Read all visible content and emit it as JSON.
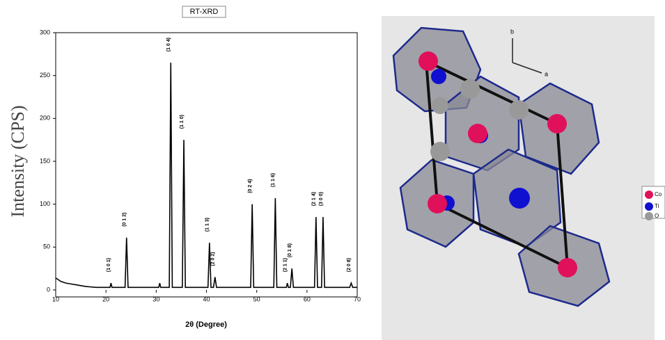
{
  "chart_data": {
    "type": "line",
    "title": "RT-XRD",
    "xlabel": "2θ (Degree)",
    "ylabel": "Intensity (CPS)",
    "x": [
      10,
      11,
      12,
      13,
      14,
      15,
      16,
      18,
      20,
      20.8,
      21,
      21.2,
      23.8,
      24.1,
      24.4,
      30.5,
      30.7,
      30.9,
      32.6,
      32.9,
      33.2,
      35.2,
      35.5,
      35.8,
      40.3,
      40.6,
      40.9,
      41.4,
      41.7,
      42,
      48.8,
      49.1,
      49.4,
      53.4,
      53.7,
      54,
      55.9,
      56.1,
      56.3,
      56.7,
      57,
      57.3,
      61.5,
      61.8,
      62.1,
      62.9,
      63.2,
      63.5,
      68.5,
      68.8,
      69.1,
      70
    ],
    "series": [
      {
        "color": "#000000",
        "values": [
          14,
          10,
          8,
          7,
          6,
          5,
          4,
          3,
          3,
          3,
          8,
          3,
          3,
          61,
          3,
          3,
          8,
          3,
          3,
          265,
          3,
          3,
          175,
          3,
          3,
          55,
          3,
          3,
          15,
          3,
          3,
          100,
          3,
          3,
          107,
          3,
          3,
          8,
          3,
          3,
          25,
          3,
          3,
          85,
          3,
          3,
          85,
          3,
          3,
          8,
          3,
          3
        ]
      }
    ],
    "annotations": [
      {
        "label": "(1 0 1)",
        "x": 21,
        "y": 8
      },
      {
        "label": "(0 1 2)",
        "x": 24.1,
        "y": 61
      },
      {
        "label": "(1 0 4)",
        "x": 32.9,
        "y": 265
      },
      {
        "label": "(1 1 0)",
        "x": 35.5,
        "y": 175
      },
      {
        "label": "(1 1 3)",
        "x": 40.6,
        "y": 55
      },
      {
        "label": "(2 0 2)",
        "x": 41.7,
        "y": 15
      },
      {
        "label": "(0 2 4)",
        "x": 49.1,
        "y": 100
      },
      {
        "label": "(1 1 6)",
        "x": 53.7,
        "y": 107
      },
      {
        "label": "(2 1 1)",
        "x": 56.1,
        "y": 8
      },
      {
        "label": "(0 1 8)",
        "x": 57,
        "y": 25
      },
      {
        "label": "(2 1 4)",
        "x": 61.8,
        "y": 85
      },
      {
        "label": "(3 0 0)",
        "x": 63.2,
        "y": 85
      },
      {
        "label": "(2 0 8)",
        "x": 68.8,
        "y": 8
      }
    ],
    "xlim": [
      10,
      70
    ],
    "xticks": [
      10,
      20,
      30,
      40,
      50,
      60,
      70
    ],
    "ylim": [
      0,
      300
    ],
    "yticks": [
      0,
      50,
      100,
      150,
      200,
      250,
      300
    ]
  },
  "structure": {
    "axes": [
      "b",
      "a"
    ],
    "legend": [
      "Co",
      "Ti",
      "O"
    ]
  }
}
